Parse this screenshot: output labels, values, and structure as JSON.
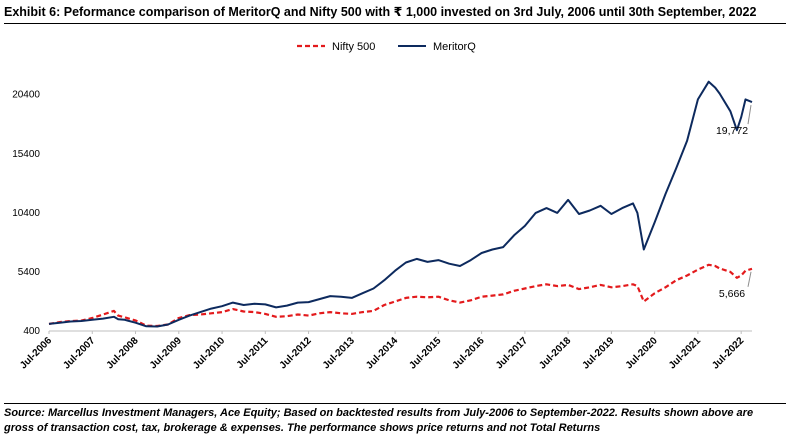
{
  "title": "Exhibit 6: Peformance comparison of MeritorQ and Nifty 500 with ₹ 1,000 invested on 3rd July, 2006 until 30th September, 2022",
  "source": "Source: Marcellus Investment Managers, Ace Equity; Based on backtested results from July-2006 to September-2022. Results shown above are gross of transaction cost, tax, brokerage & expenses. The performance shows price returns and not Total Returns",
  "chart_data": {
    "type": "line",
    "ylim": [
      400,
      23000
    ],
    "yticks": [
      "400",
      "5400",
      "10400",
      "15400",
      "20400"
    ],
    "xticks": [
      "Jul-2006",
      "Jul-2007",
      "Jul-2008",
      "Jul-2009",
      "Jul-2010",
      "Jul-2011",
      "Jul-2012",
      "Jul-2013",
      "Jul-2014",
      "Jul-2015",
      "Jul-2016",
      "Jul-2017",
      "Jul-2018",
      "Jul-2019",
      "Jul-2020",
      "Jul-2021",
      "Jul-2022"
    ],
    "legend_position": "top-center",
    "grid": false,
    "series": [
      {
        "name": "Nifty 500",
        "color": "#e31a1c",
        "style": "dashed",
        "end_label": "5,666",
        "values": [
          [
            2006.5,
            1000
          ],
          [
            2006.75,
            1150
          ],
          [
            2007.0,
            1250
          ],
          [
            2007.25,
            1280
          ],
          [
            2007.5,
            1500
          ],
          [
            2007.75,
            1800
          ],
          [
            2008.0,
            2100
          ],
          [
            2008.1,
            1700
          ],
          [
            2008.25,
            1550
          ],
          [
            2008.5,
            1300
          ],
          [
            2008.75,
            850
          ],
          [
            2009.0,
            820
          ],
          [
            2009.25,
            950
          ],
          [
            2009.5,
            1500
          ],
          [
            2009.75,
            1750
          ],
          [
            2010.0,
            1800
          ],
          [
            2010.25,
            1900
          ],
          [
            2010.5,
            2000
          ],
          [
            2010.75,
            2250
          ],
          [
            2011.0,
            2050
          ],
          [
            2011.25,
            2000
          ],
          [
            2011.5,
            1850
          ],
          [
            2011.75,
            1600
          ],
          [
            2012.0,
            1650
          ],
          [
            2012.25,
            1800
          ],
          [
            2012.5,
            1700
          ],
          [
            2012.75,
            1900
          ],
          [
            2013.0,
            2000
          ],
          [
            2013.25,
            1900
          ],
          [
            2013.5,
            1850
          ],
          [
            2013.75,
            2000
          ],
          [
            2014.0,
            2100
          ],
          [
            2014.25,
            2600
          ],
          [
            2014.5,
            2900
          ],
          [
            2014.75,
            3200
          ],
          [
            2015.0,
            3300
          ],
          [
            2015.25,
            3250
          ],
          [
            2015.5,
            3300
          ],
          [
            2015.75,
            3000
          ],
          [
            2016.0,
            2800
          ],
          [
            2016.25,
            3000
          ],
          [
            2016.5,
            3300
          ],
          [
            2016.75,
            3400
          ],
          [
            2017.0,
            3500
          ],
          [
            2017.25,
            3800
          ],
          [
            2017.5,
            4000
          ],
          [
            2017.75,
            4200
          ],
          [
            2018.0,
            4350
          ],
          [
            2018.25,
            4200
          ],
          [
            2018.5,
            4300
          ],
          [
            2018.75,
            3950
          ],
          [
            2019.0,
            4100
          ],
          [
            2019.25,
            4300
          ],
          [
            2019.5,
            4100
          ],
          [
            2019.75,
            4200
          ],
          [
            2020.0,
            4350
          ],
          [
            2020.1,
            4200
          ],
          [
            2020.25,
            2900
          ],
          [
            2020.5,
            3600
          ],
          [
            2020.75,
            4100
          ],
          [
            2021.0,
            4700
          ],
          [
            2021.25,
            5100
          ],
          [
            2021.5,
            5600
          ],
          [
            2021.75,
            6000
          ],
          [
            2021.9,
            5900
          ],
          [
            2022.0,
            5700
          ],
          [
            2022.25,
            5400
          ],
          [
            2022.4,
            4900
          ],
          [
            2022.5,
            5100
          ],
          [
            2022.6,
            5500
          ],
          [
            2022.75,
            5666
          ]
        ]
      },
      {
        "name": "MeritorQ",
        "color": "#0d2a5e",
        "style": "solid",
        "end_label": "19,772",
        "values": [
          [
            2006.5,
            1000
          ],
          [
            2006.75,
            1100
          ],
          [
            2007.0,
            1200
          ],
          [
            2007.25,
            1250
          ],
          [
            2007.5,
            1350
          ],
          [
            2007.75,
            1450
          ],
          [
            2008.0,
            1600
          ],
          [
            2008.1,
            1400
          ],
          [
            2008.25,
            1350
          ],
          [
            2008.5,
            1100
          ],
          [
            2008.75,
            800
          ],
          [
            2009.0,
            780
          ],
          [
            2009.25,
            950
          ],
          [
            2009.5,
            1350
          ],
          [
            2009.75,
            1700
          ],
          [
            2010.0,
            2000
          ],
          [
            2010.25,
            2300
          ],
          [
            2010.5,
            2500
          ],
          [
            2010.75,
            2800
          ],
          [
            2011.0,
            2600
          ],
          [
            2011.25,
            2700
          ],
          [
            2011.5,
            2650
          ],
          [
            2011.75,
            2400
          ],
          [
            2012.0,
            2550
          ],
          [
            2012.25,
            2800
          ],
          [
            2012.5,
            2850
          ],
          [
            2012.75,
            3100
          ],
          [
            2013.0,
            3350
          ],
          [
            2013.25,
            3300
          ],
          [
            2013.5,
            3200
          ],
          [
            2013.75,
            3600
          ],
          [
            2014.0,
            4000
          ],
          [
            2014.25,
            4700
          ],
          [
            2014.5,
            5500
          ],
          [
            2014.75,
            6200
          ],
          [
            2015.0,
            6500
          ],
          [
            2015.25,
            6250
          ],
          [
            2015.5,
            6400
          ],
          [
            2015.75,
            6100
          ],
          [
            2016.0,
            5900
          ],
          [
            2016.25,
            6400
          ],
          [
            2016.5,
            7000
          ],
          [
            2016.75,
            7300
          ],
          [
            2017.0,
            7500
          ],
          [
            2017.25,
            8500
          ],
          [
            2017.5,
            9300
          ],
          [
            2017.75,
            10400
          ],
          [
            2018.0,
            10800
          ],
          [
            2018.25,
            10400
          ],
          [
            2018.5,
            11500
          ],
          [
            2018.75,
            10300
          ],
          [
            2019.0,
            10600
          ],
          [
            2019.25,
            11000
          ],
          [
            2019.5,
            10300
          ],
          [
            2019.75,
            10800
          ],
          [
            2020.0,
            11200
          ],
          [
            2020.1,
            10400
          ],
          [
            2020.25,
            7300
          ],
          [
            2020.5,
            9600
          ],
          [
            2020.75,
            12000
          ],
          [
            2021.0,
            14200
          ],
          [
            2021.25,
            16500
          ],
          [
            2021.5,
            20000
          ],
          [
            2021.75,
            21500
          ],
          [
            2021.9,
            21000
          ],
          [
            2022.0,
            20500
          ],
          [
            2022.25,
            19000
          ],
          [
            2022.4,
            17400
          ],
          [
            2022.5,
            18500
          ],
          [
            2022.6,
            20000
          ],
          [
            2022.75,
            19772
          ]
        ]
      }
    ]
  }
}
